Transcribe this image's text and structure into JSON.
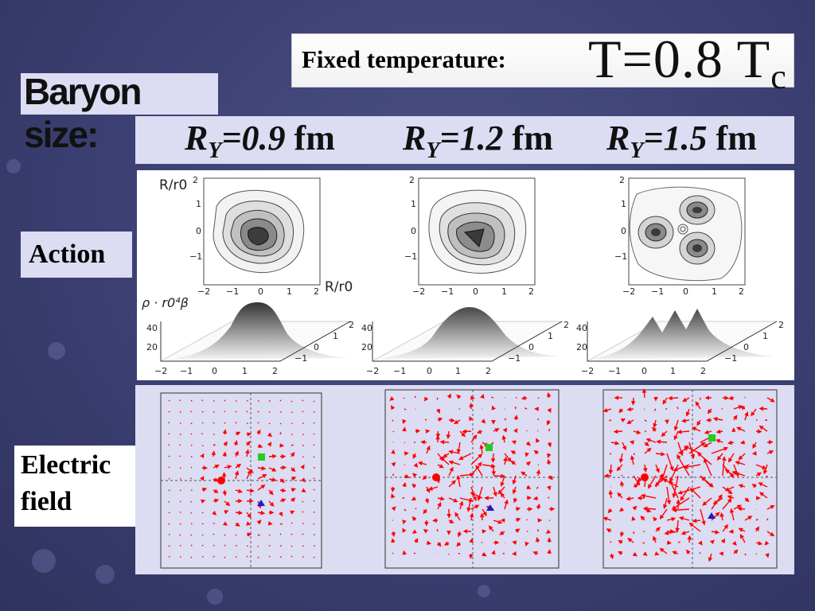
{
  "temperature": {
    "label": "Fixed temperature:",
    "value_prefix": "T=0.8 T",
    "value_sub": "c"
  },
  "baryon_label": "Baryon size:",
  "radii": [
    {
      "r": "R",
      "sub": "Y",
      "value": "=0.9",
      "unit": " fm"
    },
    {
      "r": "R",
      "sub": "Y",
      "value": "=1.2",
      "unit": " fm"
    },
    {
      "r": "R",
      "sub": "Y",
      "value": "=1.5",
      "unit": " fm"
    }
  ],
  "action": {
    "label": "Action",
    "axis_y_label": "R/r0",
    "axis_x_label": "R/r0",
    "density_label": "ρ · r0⁴β",
    "ticks": [
      "−2",
      "−1",
      "0",
      "1",
      "2"
    ],
    "density_ticks": [
      "20",
      "40"
    ]
  },
  "electric": {
    "label_line1": "Electric",
    "label_line2": "field"
  },
  "colors": {
    "quark1": "#ff0000",
    "quark2": "#22cc22",
    "quark3": "#1a1acc",
    "arrow": "#ff0000"
  }
}
